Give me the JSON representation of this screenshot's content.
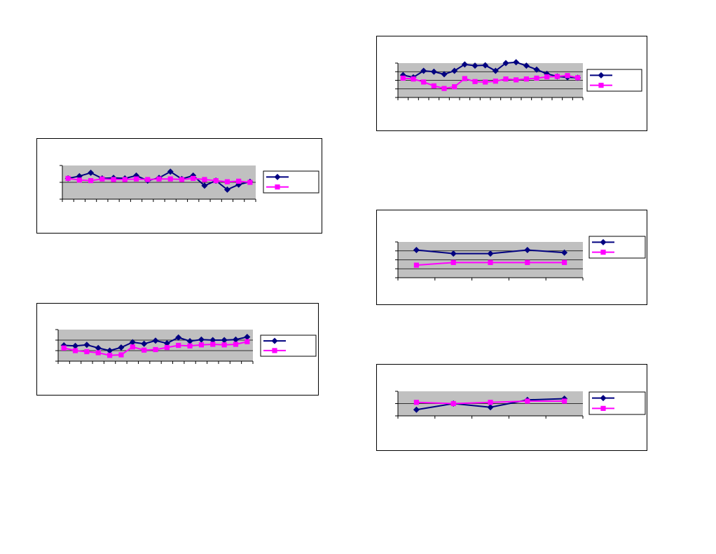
{
  "chart_data": [
    {
      "type": "line",
      "title": "",
      "xlabel": "",
      "ylabel": "",
      "grid": true,
      "legend": "right",
      "x": [
        1,
        2,
        3,
        4,
        5,
        6,
        7,
        8,
        9,
        10,
        11,
        12,
        13,
        14,
        15,
        16,
        17
      ],
      "ylim": [
        0,
        6
      ],
      "series": [
        {
          "marker": "diamond",
          "color": "#000080",
          "values": [
            3.7,
            4.1,
            4.7,
            3.7,
            3.8,
            3.7,
            4.2,
            3.3,
            3.8,
            4.9,
            3.6,
            4.2,
            2.4,
            3.3,
            1.7,
            2.6,
            3.1
          ]
        },
        {
          "marker": "square",
          "color": "#ff00ff",
          "values": [
            3.7,
            3.4,
            3.3,
            3.6,
            3.5,
            3.5,
            3.6,
            3.5,
            3.6,
            3.6,
            3.5,
            3.7,
            3.5,
            3.3,
            3.1,
            3.2,
            3.0
          ]
        }
      ]
    },
    {
      "type": "line",
      "title": "",
      "xlabel": "",
      "ylabel": "",
      "grid": true,
      "legend": "right",
      "x": [
        1,
        2,
        3,
        4,
        5,
        6,
        7,
        8,
        9,
        10,
        11,
        12,
        13,
        14,
        15,
        16,
        17
      ],
      "ylim": [
        0,
        6
      ],
      "series": [
        {
          "marker": "diamond",
          "color": "#000080",
          "values": [
            3.0,
            2.9,
            3.1,
            2.5,
            2.0,
            2.6,
            3.6,
            3.3,
            3.9,
            3.4,
            4.5,
            3.8,
            4.1,
            4.0,
            4.0,
            4.1,
            4.6
          ]
        },
        {
          "marker": "square",
          "color": "#ff00ff",
          "values": [
            2.5,
            2.0,
            1.8,
            1.6,
            1.1,
            1.2,
            2.7,
            2.1,
            2.2,
            2.6,
            3.0,
            2.9,
            3.1,
            3.2,
            3.1,
            3.2,
            3.7
          ]
        }
      ]
    },
    {
      "type": "line",
      "title": "",
      "xlabel": "",
      "ylabel": "",
      "grid": true,
      "legend": "right",
      "x": [
        1,
        2,
        3,
        4,
        5,
        6,
        7,
        8,
        9,
        10,
        11,
        12,
        13,
        14,
        15,
        16,
        17,
        18
      ],
      "ylim": [
        0,
        8
      ],
      "series": [
        {
          "marker": "diamond",
          "color": "#000080",
          "values": [
            5.2,
            4.7,
            6.2,
            6.0,
            5.4,
            6.2,
            7.7,
            7.4,
            7.5,
            6.2,
            8.0,
            8.2,
            7.4,
            6.5,
            5.5,
            4.9,
            4.7,
            4.6
          ]
        },
        {
          "marker": "square",
          "color": "#ff00ff",
          "values": [
            4.5,
            4.3,
            3.6,
            2.7,
            2.1,
            2.5,
            4.4,
            3.7,
            3.6,
            3.8,
            4.3,
            4.1,
            4.3,
            4.5,
            4.8,
            4.9,
            5.1,
            4.6
          ]
        }
      ]
    },
    {
      "type": "line",
      "title": "",
      "xlabel": "",
      "ylabel": "",
      "grid": true,
      "legend": "right",
      "x": [
        1,
        2,
        3,
        4,
        5
      ],
      "ylim": [
        0,
        4
      ],
      "series": [
        {
          "marker": "diamond",
          "color": "#000080",
          "values": [
            3.1,
            2.7,
            2.7,
            3.1,
            2.8
          ]
        },
        {
          "marker": "square",
          "color": "#ff00ff",
          "values": [
            1.4,
            1.7,
            1.7,
            1.7,
            1.7
          ]
        }
      ]
    },
    {
      "type": "line",
      "title": "",
      "xlabel": "",
      "ylabel": "",
      "grid": true,
      "legend": "right",
      "x": [
        1,
        2,
        3,
        4,
        5
      ],
      "ylim": [
        0,
        2
      ],
      "series": [
        {
          "marker": "diamond",
          "color": "#000080",
          "values": [
            0.5,
            1.0,
            0.7,
            1.3,
            1.4
          ]
        },
        {
          "marker": "square",
          "color": "#ff00ff",
          "values": [
            1.1,
            1.0,
            1.1,
            1.2,
            1.2
          ]
        }
      ]
    }
  ]
}
